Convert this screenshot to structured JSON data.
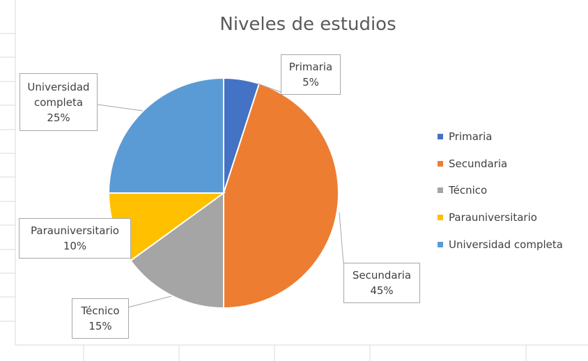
{
  "chart_data": {
    "type": "pie",
    "title": "Niveles de estudios",
    "categories": [
      "Primaria",
      "Secundaria",
      "Técnico",
      "Parauniversitario",
      "Universidad completa"
    ],
    "values": [
      5,
      45,
      15,
      10,
      25
    ],
    "value_labels": [
      "5%",
      "45%",
      "15%",
      "10%",
      "25%"
    ],
    "colors": [
      "#4472c4",
      "#ed7d31",
      "#a5a5a5",
      "#ffc000",
      "#5b9bd5"
    ],
    "legend": "right"
  }
}
